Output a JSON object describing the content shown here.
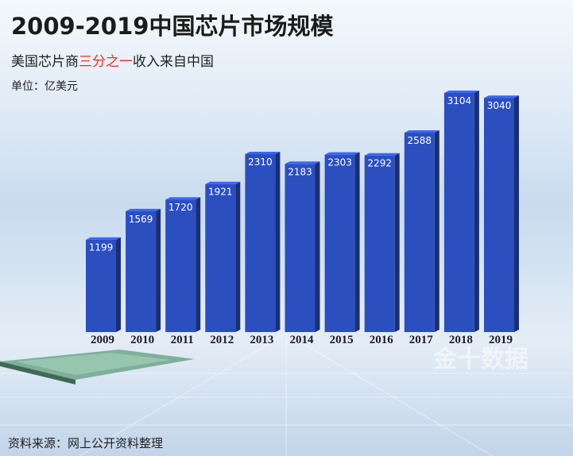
{
  "chart_data": {
    "type": "bar",
    "title": "2009-2019中国芯片市场规模",
    "subtitle": [
      "美国芯片商",
      "三分之一",
      "收入来自中国"
    ],
    "unit": "单位：亿美元",
    "source": "资料来源：网上公开资料整理",
    "watermark": "金十数据",
    "categories": [
      "2009",
      "2010",
      "2011",
      "2012",
      "2013",
      "2014",
      "2015",
      "2016",
      "2017",
      "2018",
      "2019"
    ],
    "values": [
      1199,
      1569,
      1720,
      1921,
      2310,
      2183,
      2303,
      2292,
      2588,
      3104,
      3040
    ],
    "color": "#2b4fbf",
    "highlight_color": "#e0302a"
  }
}
